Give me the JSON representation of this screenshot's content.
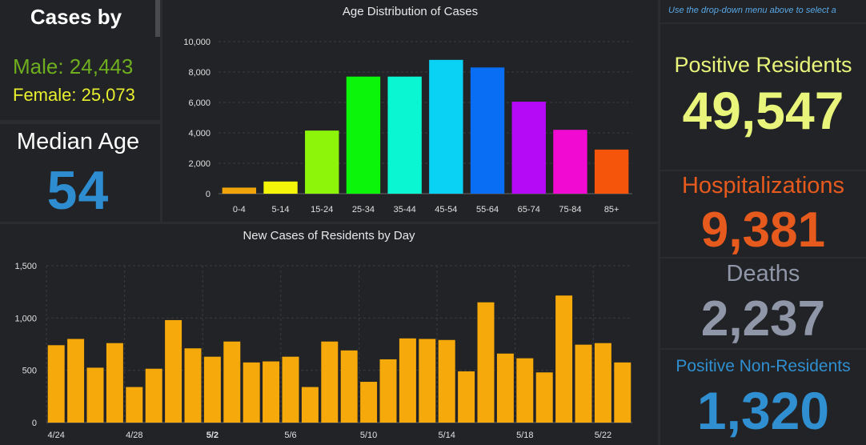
{
  "gender": {
    "title": "Cases by",
    "male": "Male: 24,443",
    "female": "Female: 25,073"
  },
  "median": {
    "label": "Median Age",
    "value": "54"
  },
  "note": "Use the drop-down menu above to select a",
  "stats": {
    "positive_residents": {
      "label": "Positive Residents",
      "value": "49,547",
      "color": "#e8f57a"
    },
    "hospitalizations": {
      "label": "Hospitalizations",
      "value": "9,381",
      "color": "#e65a1e"
    },
    "deaths": {
      "label": "Deaths",
      "value": "2,237",
      "color": "#8f96a8"
    },
    "non_residents": {
      "label": "Positive Non-Residents",
      "value": "1,320",
      "color": "#2f8fd0"
    }
  },
  "chart_data": [
    {
      "type": "bar",
      "title": "Age Distribution of Cases",
      "categories": [
        "0-4",
        "5-14",
        "15-24",
        "25-34",
        "35-44",
        "45-54",
        "55-64",
        "65-74",
        "75-84",
        "85+"
      ],
      "values": [
        400,
        800,
        4150,
        7700,
        7700,
        8800,
        8300,
        6050,
        4200,
        2900
      ],
      "colors": [
        "#f0a30a",
        "#f5f50a",
        "#8cf50a",
        "#0af50a",
        "#0af5d2",
        "#0ad2f5",
        "#0a6ef5",
        "#b40af5",
        "#f00ad2",
        "#f5550a"
      ],
      "yticks": [
        0,
        2000,
        4000,
        6000,
        8000,
        10000
      ],
      "ytick_labels": [
        "0",
        "2,000",
        "4,000",
        "6,000",
        "8,000",
        "10,000"
      ],
      "ylim": [
        0,
        10000
      ],
      "grid": true
    },
    {
      "type": "bar",
      "title": "New Cases of Residents by Day",
      "values": [
        740,
        800,
        525,
        760,
        340,
        515,
        980,
        710,
        630,
        775,
        575,
        585,
        630,
        340,
        775,
        690,
        390,
        605,
        805,
        800,
        790,
        490,
        1150,
        660,
        615,
        480,
        1215,
        745,
        760,
        575
      ],
      "x_labels": [
        "4/24",
        "4/28",
        "5/2",
        "5/6",
        "5/10",
        "5/14",
        "5/18",
        "5/22"
      ],
      "x_label_positions": [
        0,
        4,
        8,
        12,
        16,
        20,
        24,
        28
      ],
      "yticks": [
        0,
        500,
        1000,
        1500
      ],
      "ytick_labels": [
        "0",
        "500",
        "1,000",
        "1,500"
      ],
      "ylim": [
        0,
        1500
      ],
      "color": "#f5a90a",
      "grid": true
    }
  ]
}
